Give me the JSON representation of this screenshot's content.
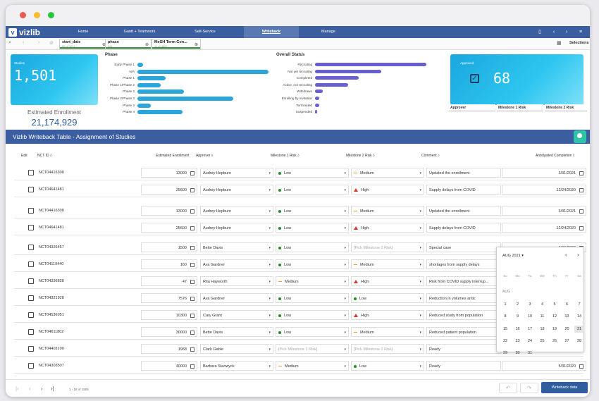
{
  "app": {
    "brand": "vizlib"
  },
  "nav": {
    "tabs": [
      "Home",
      "Gantt + Teamwork",
      "Self-Service",
      "Writeback",
      "Manage"
    ],
    "active": "Writeback"
  },
  "selections": {
    "chips": [
      {
        "title": "start_date",
        "sub": "88 of 1611"
      },
      {
        "title": "phase",
        "sub": "ALL"
      },
      {
        "title": "MeSH Term Con...",
        "sub": "11 of 4897"
      }
    ],
    "label": "Selections"
  },
  "kpi_left": {
    "label": "Studies",
    "value": "1,501",
    "sub_label": "Estimated Enrollment",
    "sub_value": "21,174,929"
  },
  "phase_chart": {
    "title": "Phase"
  },
  "status_chart": {
    "title": "Overall Status"
  },
  "kpi_right": {
    "label": "Approved",
    "value": "68",
    "columns": [
      "Approver",
      "Milestone 1 Risk",
      "Milestone 2 Risk"
    ]
  },
  "chart_data": [
    {
      "type": "bar",
      "title": "Phase",
      "categories": [
        "Early Phase 1",
        "N/A",
        "Phase 1",
        "Phase 1/Phase 2",
        "Phase 2",
        "Phase 2/Phase 3",
        "Phase 3",
        "Phase 4"
      ],
      "values": [
        8,
        186,
        40,
        33,
        66,
        136,
        19,
        64
      ],
      "orientation": "horizontal"
    },
    {
      "type": "bar",
      "title": "Overall Status",
      "categories": [
        "Recruiting",
        "Not yet recruiting",
        "Completed",
        "Active, not recruiting",
        "Withdrawn",
        "Enrolling by invitation",
        "Terminated",
        "Suspended"
      ],
      "values": [
        158,
        94,
        62,
        47,
        11,
        6,
        6,
        3
      ],
      "orientation": "horizontal"
    }
  ],
  "writeback": {
    "title": "Vizlib Writeback Table - Assignment of Studies",
    "headers": {
      "edit": "Edit",
      "nct": "NCT ID",
      "enroll": "Estimated Enrollment",
      "approver": "Approver",
      "m1": "Milestone 1 Risk",
      "m2": "Milestone 2 Risk",
      "comment": "Comment",
      "completion": "Anticipated Completion"
    },
    "m1_placeholder": "[Pick Milestone 1 Risk]",
    "m2_placeholder": "[Pick Milestone 2 Risk]",
    "rows": [
      {
        "nct": "NCT04416308",
        "enroll": "13000",
        "approver": "Audrey Hepburn",
        "m1": "Low",
        "m1c": "green",
        "m2": "Medium",
        "m2c": "orange",
        "comment": "Updated the enrollment",
        "date": "3/31/2021"
      },
      {
        "nct": "NCT04641481",
        "enroll": "25600",
        "approver": "Audrey Hepburn",
        "m1": "Low",
        "m1c": "green",
        "m2": "High",
        "m2c": "red",
        "comment": "Supply delays from COVID",
        "date": "12/24/2020"
      },
      {
        "nct": "NCT04416308",
        "enroll": "13000",
        "approver": "Audrey Hepburn",
        "m1": "Low",
        "m1c": "green",
        "m2": "Medium",
        "m2c": "orange",
        "comment": "Updated the enrollment",
        "date": "3/31/2021"
      },
      {
        "nct": "NCT04641481",
        "enroll": "25600",
        "approver": "Audrey Hepburn",
        "m1": "Low",
        "m1c": "green",
        "m2": "High",
        "m2c": "red",
        "comment": "Supply delays from COVID",
        "date": "12/24/2020"
      },
      {
        "nct": "NCT04326467",
        "enroll": "1500",
        "approver": "Bette Davis",
        "m1": "Low",
        "m1c": "green",
        "m2": "",
        "m2c": "none",
        "comment": "Special case",
        "date": "6/30/2020"
      },
      {
        "nct": "NCT04119440",
        "enroll": "160",
        "approver": "Ava Gardner",
        "m1": "Low",
        "m1c": "green",
        "m2": "Medium",
        "m2c": "orange",
        "comment": "shortages from supply delays",
        "date": ""
      },
      {
        "nct": "NCT04336828",
        "enroll": "47",
        "approver": "Rita Hayworth",
        "m1": "Medium",
        "m1c": "orange",
        "m2": "High",
        "m2c": "red",
        "comment": "Risk from COVID supply interrup...",
        "date": ""
      },
      {
        "nct": "NCT04321928",
        "enroll": "7576",
        "approver": "Ava Gardner",
        "m1": "Low",
        "m1c": "green",
        "m2": "Low",
        "m2c": "green",
        "comment": "Reduction in volumes antic",
        "date": ""
      },
      {
        "nct": "NCT04536051",
        "enroll": "10300",
        "approver": "Cary Grant",
        "m1": "Low",
        "m1c": "green",
        "m2": "High",
        "m2c": "red",
        "comment": "Reduced study from population",
        "date": ""
      },
      {
        "nct": "NCT04611802",
        "enroll": "30000",
        "approver": "Bette Davis",
        "m1": "Low",
        "m1c": "green",
        "m2": "Medium",
        "m2c": "orange",
        "comment": "Reduced patient population",
        "date": ""
      },
      {
        "nct": "NCT04403100",
        "enroll": "1968",
        "approver": "Clark Gable",
        "m1": "",
        "m1c": "none",
        "m2": "",
        "m2c": "none",
        "comment": "Ready",
        "date": ""
      },
      {
        "nct": "NCT04303507",
        "enroll": "40000",
        "approver": "Barbara Stanwyck",
        "m1": "Medium",
        "m1c": "orange",
        "m2": "Low",
        "m2c": "green",
        "comment": "Ready",
        "date": "5/31/2020"
      }
    ]
  },
  "calendar": {
    "month": "AUG 2021",
    "section": "AUG",
    "dow": [
      "Su",
      "Mo",
      "Tu",
      "We",
      "Th",
      "Fr",
      "Sa"
    ],
    "weeks": [
      [
        "1",
        "2",
        "3",
        "4",
        "5",
        "6",
        "7"
      ],
      [
        "8",
        "9",
        "10",
        "11",
        "12",
        "13",
        "14"
      ],
      [
        "15",
        "16",
        "17",
        "18",
        "19",
        "20",
        "21"
      ],
      [
        "22",
        "23",
        "24",
        "25",
        "26",
        "27",
        "28"
      ],
      [
        "29",
        "30",
        "31"
      ]
    ],
    "selected": "21"
  },
  "footer": {
    "range": "1 - 18 of 1504",
    "writeback_button": "Writeback data"
  }
}
